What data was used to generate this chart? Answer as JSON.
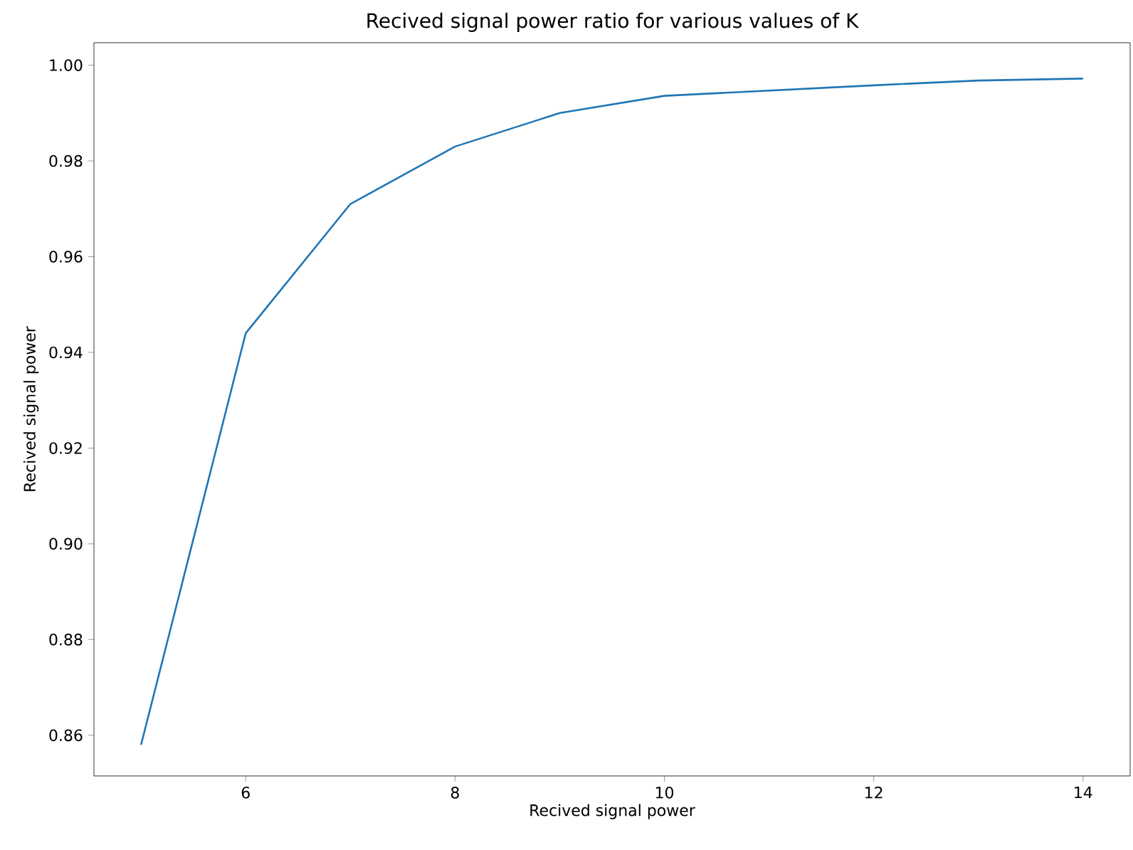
{
  "chart_data": {
    "type": "line",
    "title": "Recived signal power ratio for various values of K",
    "xlabel": "Recived signal power",
    "ylabel": "Recived signal power",
    "x": [
      5,
      6,
      7,
      8,
      9,
      10,
      11,
      12,
      13,
      14
    ],
    "series": [
      {
        "color": "#1f77b4",
        "values": [
          0.858,
          0.944,
          0.971,
          0.983,
          0.99,
          0.9936,
          0.9947,
          0.9958,
          0.9968,
          0.9972
        ]
      }
    ],
    "xlim": [
      4.55,
      14.45
    ],
    "ylim": [
      0.8515,
      1.0047
    ],
    "xticks": [
      6,
      8,
      10,
      12,
      14
    ],
    "yticks": [
      0.86,
      0.88,
      {
        "value": 0.9,
        "label": "0.90"
      },
      0.92,
      0.94,
      0.96,
      0.98,
      {
        "value": 1.0,
        "label": "1.00"
      }
    ],
    "grid": false,
    "marker": "none",
    "line_style": "solid"
  }
}
